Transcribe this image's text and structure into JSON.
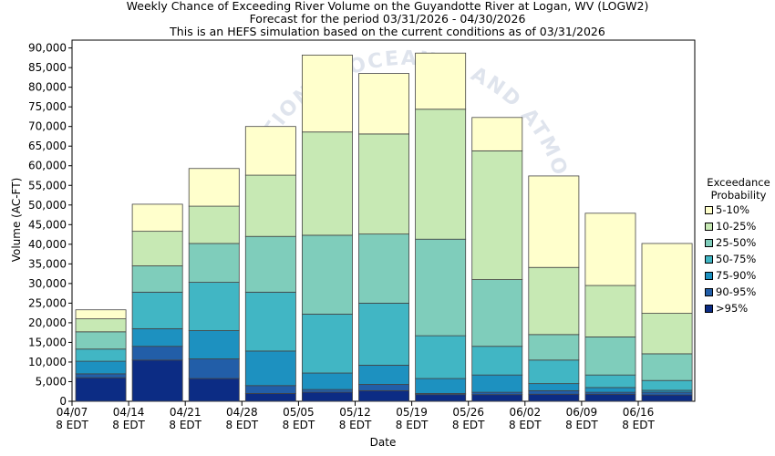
{
  "titles": {
    "line1": "Weekly Chance of Exceeding River Volume on the Guyandotte River at Logan, WV (LOGW2)",
    "line2": "Forecast for the period 03/31/2026 - 04/30/2026",
    "line3": "This is an HEFS simulation based on the current conditions as of 03/31/2026"
  },
  "watermark": "NATIONAL OCEANIC AND ATMOSPHERIC ADMINISTRATION",
  "legend": {
    "title_line1": "Exceedance",
    "title_line2": "Probability",
    "items": [
      {
        "label": "5-10%",
        "color": "#ffffcc"
      },
      {
        "label": "10-25%",
        "color": "#c7e9b4"
      },
      {
        "label": "25-50%",
        "color": "#7fcdbb"
      },
      {
        "label": "50-75%",
        "color": "#41b6c4"
      },
      {
        "label": "75-90%",
        "color": "#1d91c0"
      },
      {
        "label": "90-95%",
        "color": "#225ea8"
      },
      {
        "label": ">95%",
        "color": "#0c2c84"
      }
    ]
  },
  "chart_data": {
    "type": "bar",
    "stacked": true,
    "title": "Weekly Chance of Exceeding River Volume on the Guyandotte River at Logan, WV (LOGW2)",
    "xlabel": "Date",
    "ylabel": "Volume (AC-FT)",
    "ylim": [
      0,
      92000
    ],
    "yticks": [
      0,
      5000,
      10000,
      15000,
      20000,
      25000,
      30000,
      35000,
      40000,
      45000,
      50000,
      55000,
      60000,
      65000,
      70000,
      75000,
      80000,
      85000,
      90000
    ],
    "ytick_labels": [
      "0",
      "5,000",
      "10,000",
      "15,000",
      "20,000",
      "25,000",
      "30,000",
      "35,000",
      "40,000",
      "45,000",
      "50,000",
      "55,000",
      "60,000",
      "65,000",
      "70,000",
      "75,000",
      "80,000",
      "85,000",
      "90,000"
    ],
    "xtick_labels": [
      [
        "04/07",
        "8 EDT"
      ],
      [
        "04/14",
        "8 EDT"
      ],
      [
        "04/21",
        "8 EDT"
      ],
      [
        "04/28",
        "8 EDT"
      ],
      [
        "05/05",
        "8 EDT"
      ],
      [
        "05/12",
        "8 EDT"
      ],
      [
        "05/19",
        "8 EDT"
      ],
      [
        "05/26",
        "8 EDT"
      ],
      [
        "06/02",
        "8 EDT"
      ],
      [
        "06/09",
        "8 EDT"
      ],
      [
        "06/16",
        "8 EDT"
      ]
    ],
    "bar_count": 11,
    "band_labels": [
      ">95%",
      "90-95%",
      "75-90%",
      "50-75%",
      "25-50%",
      "10-25%",
      "5-10%"
    ],
    "band_colors": [
      "#0c2c84",
      "#225ea8",
      "#1d91c0",
      "#41b6c4",
      "#7fcdbb",
      "#c7e9b4",
      "#ffffcc"
    ],
    "levels": [
      [
        6000,
        7000,
        10200,
        13300,
        17700,
        21000,
        23300
      ],
      [
        10500,
        14000,
        18500,
        27800,
        34500,
        43300,
        50200
      ],
      [
        5800,
        10800,
        18000,
        30300,
        40200,
        49700,
        59300
      ],
      [
        2000,
        4000,
        12800,
        27800,
        42000,
        57600,
        70000
      ],
      [
        2300,
        3000,
        7200,
        22200,
        42300,
        68600,
        88200
      ],
      [
        2700,
        4300,
        9200,
        25000,
        42600,
        68100,
        83500
      ],
      [
        1700,
        2000,
        5800,
        16700,
        41300,
        74400,
        88700
      ],
      [
        1700,
        2300,
        6700,
        14000,
        31000,
        63800,
        72300
      ],
      [
        1800,
        2700,
        4500,
        10500,
        17000,
        34100,
        57400
      ],
      [
        1800,
        2300,
        3500,
        6700,
        16400,
        29500,
        47900
      ],
      [
        1600,
        2300,
        2800,
        5300,
        12100,
        22400,
        40200
      ]
    ]
  }
}
